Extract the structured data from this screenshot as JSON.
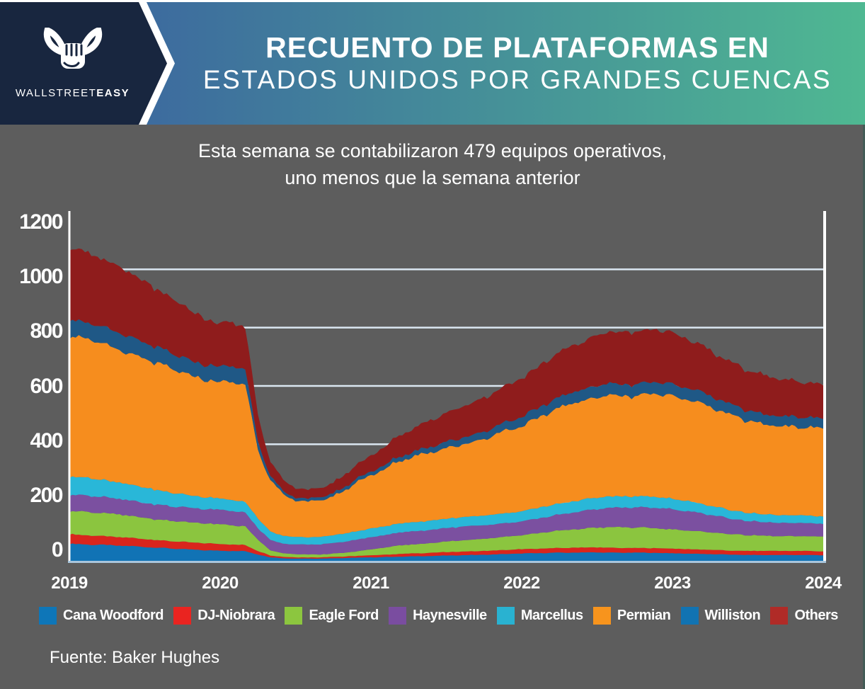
{
  "header": {
    "brand_name": "WALLSTREET",
    "brand_name_bold": "EASY",
    "title_line1": "RECUENTO DE PLATAFORMAS EN",
    "title_line2": "ESTADOS UNIDOS POR GRANDES CUENCAS",
    "colors": {
      "navy": "#18263f",
      "gradient_start": "#3d6c9e",
      "gradient_end": "#4fb892"
    }
  },
  "subtitle": {
    "line1": "Esta semana se contabilizaron 479 equipos operativos,",
    "line2": "uno menos que la semana anterior"
  },
  "source_note": "Fuente: Baker Hughes",
  "chart_data": {
    "type": "area",
    "stacked": true,
    "title": "Recuento de plataformas en Estados Unidos por grandes cuencas",
    "x_unit": "months since Jan 2019, monthly points Jan 2019 - Jan 2024",
    "x_tick_labels": [
      "2019",
      "2020",
      "2021",
      "2022",
      "2023",
      "2024"
    ],
    "y_ticks": [
      0,
      200,
      400,
      600,
      800,
      1000,
      1200
    ],
    "ylim": [
      0,
      1200
    ],
    "grid_values": [
      200,
      400,
      600,
      800,
      1000
    ],
    "grid_on": true,
    "legend_position": "bottom",
    "background_color": "#5d5d5d",
    "gridline_color": "#dbe7f2",
    "axis_color": "#ffffff",
    "baseline_color": "#a9c6dd",
    "series": [
      {
        "name": "Cana Woodford",
        "color": "#1173b5",
        "legend_color": "#0e76b8",
        "values": [
          58,
          57,
          55,
          54,
          52,
          50,
          48,
          45,
          43,
          40,
          38,
          36,
          35,
          34,
          33,
          22,
          12,
          9,
          8,
          8,
          8,
          9,
          10,
          11,
          12,
          13,
          14,
          15,
          16,
          17,
          18,
          19,
          20,
          21,
          22,
          24,
          25,
          26,
          27,
          28,
          28,
          29,
          29,
          28,
          28,
          28,
          28,
          27,
          26,
          25,
          24,
          23,
          22,
          21,
          20,
          20,
          20,
          20,
          20,
          20,
          19
        ]
      },
      {
        "name": "DJ-Niobrara",
        "color": "#d9251d",
        "legend_color": "#ea2420",
        "values": [
          33,
          32,
          31,
          30,
          29,
          28,
          27,
          26,
          25,
          25,
          24,
          24,
          23,
          22,
          21,
          12,
          6,
          5,
          4,
          4,
          4,
          5,
          5,
          6,
          7,
          8,
          9,
          10,
          10,
          11,
          12,
          12,
          13,
          13,
          14,
          14,
          15,
          15,
          16,
          16,
          17,
          17,
          17,
          17,
          16,
          16,
          16,
          16,
          16,
          15,
          15,
          15,
          14,
          14,
          14,
          14,
          14,
          14,
          14,
          14,
          13
        ]
      },
      {
        "name": "Eagle Ford",
        "color": "#8bc53f",
        "legend_color": "#8cc63f",
        "values": [
          81,
          80,
          79,
          78,
          77,
          75,
          73,
          71,
          70,
          69,
          68,
          68,
          67,
          66,
          64,
          38,
          18,
          12,
          11,
          10,
          10,
          11,
          13,
          16,
          20,
          24,
          28,
          30,
          32,
          34,
          36,
          38,
          40,
          42,
          44,
          46,
          48,
          52,
          56,
          59,
          62,
          65,
          68,
          70,
          71,
          70,
          69,
          68,
          66,
          64,
          62,
          60,
          58,
          56,
          54,
          52,
          51,
          50,
          50,
          51,
          50
        ]
      },
      {
        "name": "Haynesville",
        "color": "#7b50a0",
        "legend_color": "#7a4da0",
        "values": [
          55,
          56,
          56,
          55,
          54,
          53,
          52,
          51,
          50,
          50,
          50,
          50,
          50,
          49,
          47,
          40,
          35,
          33,
          33,
          34,
          35,
          36,
          38,
          40,
          42,
          43,
          44,
          45,
          45,
          46,
          46,
          47,
          47,
          46,
          46,
          46,
          47,
          49,
          52,
          55,
          58,
          61,
          64,
          66,
          68,
          69,
          70,
          70,
          69,
          67,
          64,
          60,
          56,
          52,
          49,
          47,
          46,
          45,
          45,
          45,
          44
        ]
      },
      {
        "name": "Marcellus",
        "color": "#29b7d8",
        "legend_color": "#29b2d1",
        "values": [
          63,
          62,
          60,
          58,
          56,
          54,
          52,
          50,
          47,
          44,
          42,
          40,
          39,
          38,
          37,
          33,
          29,
          27,
          26,
          25,
          26,
          27,
          28,
          29,
          30,
          30,
          31,
          31,
          31,
          32,
          32,
          32,
          33,
          33,
          34,
          34,
          35,
          36,
          37,
          38,
          38,
          39,
          39,
          39,
          38,
          38,
          38,
          37,
          36,
          35,
          33,
          31,
          30,
          29,
          28,
          27,
          27,
          26,
          26,
          26,
          25
        ]
      },
      {
        "name": "Permian",
        "color": "#f68d1e",
        "legend_color": "#f7941d",
        "values": [
          485,
          480,
          470,
          463,
          455,
          445,
          440,
          435,
          425,
          417,
          408,
          403,
          398,
          405,
          403,
          240,
          175,
          140,
          126,
          122,
          125,
          133,
          149,
          172,
          183,
          193,
          211,
          222,
          231,
          236,
          244,
          247,
          254,
          263,
          276,
          286,
          293,
          301,
          316,
          330,
          336,
          340,
          344,
          348,
          343,
          346,
          350,
          353,
          354,
          351,
          345,
          339,
          330,
          324,
          315,
          310,
          307,
          306,
          303,
          301,
          304
        ]
      },
      {
        "name": "Williston",
        "color": "#1f5886",
        "legend_color": "#1173b2",
        "values": [
          57,
          55,
          56,
          57,
          58,
          57,
          55,
          54,
          53,
          52,
          50,
          52,
          53,
          54,
          52,
          30,
          14,
          11,
          10,
          10,
          11,
          11,
          12,
          12,
          13,
          14,
          15,
          16,
          18,
          20,
          22,
          23,
          24,
          26,
          27,
          30,
          32,
          33,
          35,
          36,
          38,
          39,
          40,
          40,
          39,
          40,
          40,
          41,
          40,
          41,
          40,
          38,
          37,
          36,
          35,
          35,
          34,
          34,
          35,
          34,
          33
        ]
      },
      {
        "name": "Others",
        "color": "#8f1c1c",
        "legend_color": "#b02b27",
        "values": [
          250,
          243,
          236,
          230,
          225,
          218,
          210,
          200,
          190,
          180,
          168,
          158,
          150,
          148,
          145,
          90,
          50,
          38,
          33,
          31,
          32,
          36,
          42,
          48,
          55,
          62,
          70,
          78,
          85,
          92,
          99,
          105,
          110,
          116,
          121,
          126,
          132,
          138,
          146,
          153,
          160,
          166,
          172,
          176,
          178,
          180,
          181,
          180,
          176,
          170,
          163,
          155,
          148,
          143,
          138,
          134,
          130,
          126,
          122,
          119,
          116
        ]
      }
    ]
  }
}
